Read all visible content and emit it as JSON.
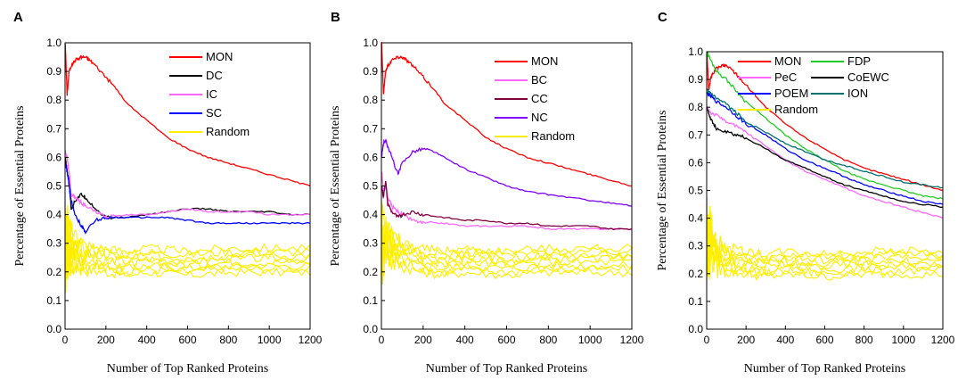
{
  "chart_data": [
    {
      "type": "line",
      "panel": "A",
      "xlabel": "Number of Top Ranked Proteins",
      "ylabel": "Percentage of Essential Proteins",
      "xlim": [
        0,
        1200
      ],
      "ylim": [
        0,
        1.0
      ],
      "xticks": [
        "0",
        "200",
        "400",
        "600",
        "800",
        "1000",
        "1200"
      ],
      "yticks": [
        "0.0",
        "0.1",
        "0.2",
        "0.3",
        "0.4",
        "0.5",
        "0.6",
        "0.7",
        "0.8",
        "0.9",
        "1.0"
      ],
      "legend": {
        "position": "top-right",
        "columns": 1
      },
      "series": [
        {
          "name": "MON",
          "color": "#ff0000",
          "x": [
            1,
            10,
            20,
            30,
            50,
            80,
            100,
            120,
            150,
            200,
            250,
            300,
            400,
            500,
            600,
            700,
            800,
            900,
            1000,
            1100,
            1200
          ],
          "y": [
            1.0,
            0.82,
            0.9,
            0.92,
            0.94,
            0.95,
            0.95,
            0.94,
            0.92,
            0.88,
            0.84,
            0.79,
            0.73,
            0.67,
            0.63,
            0.6,
            0.58,
            0.56,
            0.54,
            0.52,
            0.5
          ]
        },
        {
          "name": "DC",
          "color": "#000000",
          "x": [
            1,
            10,
            20,
            30,
            50,
            80,
            100,
            150,
            200,
            300,
            400,
            500,
            600,
            700,
            800,
            900,
            1000,
            1100,
            1200
          ],
          "y": [
            0.6,
            0.55,
            0.52,
            0.42,
            0.45,
            0.47,
            0.46,
            0.42,
            0.39,
            0.39,
            0.4,
            0.41,
            0.42,
            0.42,
            0.41,
            0.41,
            0.41,
            0.4,
            0.4
          ]
        },
        {
          "name": "IC",
          "color": "#ff66ff",
          "x": [
            1,
            10,
            20,
            30,
            50,
            80,
            100,
            150,
            200,
            300,
            400,
            500,
            600,
            700,
            800,
            900,
            1000,
            1100,
            1200
          ],
          "y": [
            0.62,
            0.6,
            0.55,
            0.47,
            0.46,
            0.44,
            0.43,
            0.41,
            0.39,
            0.4,
            0.4,
            0.41,
            0.42,
            0.41,
            0.41,
            0.41,
            0.4,
            0.4,
            0.4
          ]
        },
        {
          "name": "SC",
          "color": "#0000ff",
          "x": [
            1,
            10,
            20,
            30,
            50,
            80,
            100,
            150,
            200,
            300,
            400,
            500,
            600,
            700,
            800,
            900,
            1000,
            1100,
            1200
          ],
          "y": [
            0.58,
            0.55,
            0.5,
            0.45,
            0.4,
            0.36,
            0.34,
            0.38,
            0.39,
            0.39,
            0.39,
            0.39,
            0.38,
            0.37,
            0.37,
            0.37,
            0.37,
            0.37,
            0.37
          ]
        },
        {
          "name": "Random",
          "color": "#ffee00",
          "x": [
            1,
            20,
            50,
            100,
            200,
            300,
            400,
            600,
            800,
            1000,
            1200
          ],
          "y": [
            0.28,
            0.3,
            0.27,
            0.25,
            0.24,
            0.23,
            0.24,
            0.23,
            0.24,
            0.24,
            0.24
          ]
        }
      ]
    },
    {
      "type": "line",
      "panel": "B",
      "xlabel": "Number of Top Ranked Proteins",
      "ylabel": "Percentage of Essential Proteins",
      "xlim": [
        0,
        1200
      ],
      "ylim": [
        0,
        1.0
      ],
      "xticks": [
        "0",
        "200",
        "400",
        "600",
        "800",
        "1000",
        "1200"
      ],
      "yticks": [
        "0.0",
        "0.1",
        "0.2",
        "0.3",
        "0.4",
        "0.5",
        "0.6",
        "0.7",
        "0.8",
        "0.9",
        "1.0"
      ],
      "legend": {
        "position": "top-right",
        "columns": 1
      },
      "series": [
        {
          "name": "MON",
          "color": "#ff0000",
          "x": [
            1,
            10,
            20,
            30,
            50,
            80,
            100,
            120,
            150,
            200,
            250,
            300,
            400,
            500,
            600,
            700,
            800,
            900,
            1000,
            1100,
            1200
          ],
          "y": [
            1.0,
            0.82,
            0.9,
            0.92,
            0.94,
            0.95,
            0.95,
            0.94,
            0.92,
            0.88,
            0.84,
            0.79,
            0.73,
            0.67,
            0.63,
            0.6,
            0.58,
            0.56,
            0.54,
            0.52,
            0.5
          ]
        },
        {
          "name": "BC",
          "color": "#ff66ff",
          "x": [
            1,
            10,
            20,
            30,
            50,
            80,
            100,
            150,
            200,
            300,
            400,
            500,
            600,
            700,
            800,
            900,
            1000,
            1100,
            1200
          ],
          "y": [
            0.55,
            0.48,
            0.5,
            0.46,
            0.43,
            0.41,
            0.4,
            0.38,
            0.37,
            0.37,
            0.36,
            0.36,
            0.36,
            0.36,
            0.35,
            0.35,
            0.35,
            0.35,
            0.35
          ]
        },
        {
          "name": "CC",
          "color": "#800040",
          "x": [
            1,
            10,
            20,
            30,
            50,
            80,
            100,
            150,
            200,
            300,
            400,
            500,
            600,
            700,
            800,
            900,
            1000,
            1100,
            1200
          ],
          "y": [
            0.5,
            0.46,
            0.52,
            0.44,
            0.41,
            0.39,
            0.4,
            0.41,
            0.4,
            0.39,
            0.38,
            0.38,
            0.37,
            0.37,
            0.36,
            0.36,
            0.36,
            0.35,
            0.35
          ]
        },
        {
          "name": "NC",
          "color": "#8000ff",
          "x": [
            1,
            10,
            20,
            30,
            50,
            80,
            100,
            150,
            200,
            250,
            300,
            400,
            500,
            600,
            700,
            800,
            900,
            1000,
            1100,
            1200
          ],
          "y": [
            0.6,
            0.65,
            0.66,
            0.64,
            0.6,
            0.54,
            0.58,
            0.62,
            0.63,
            0.62,
            0.6,
            0.56,
            0.53,
            0.5,
            0.48,
            0.47,
            0.46,
            0.45,
            0.44,
            0.43
          ]
        },
        {
          "name": "Random",
          "color": "#ffee00",
          "x": [
            1,
            20,
            50,
            100,
            200,
            300,
            400,
            600,
            800,
            1000,
            1200
          ],
          "y": [
            0.3,
            0.32,
            0.28,
            0.26,
            0.24,
            0.23,
            0.24,
            0.23,
            0.24,
            0.24,
            0.24
          ]
        }
      ]
    },
    {
      "type": "line",
      "panel": "C",
      "xlabel": "Number of Top Ranked Proteins",
      "ylabel": "Percentage of Essential Proteins",
      "xlim": [
        0,
        1200
      ],
      "ylim": [
        0,
        1.0
      ],
      "xticks": [
        "0",
        "200",
        "400",
        "600",
        "800",
        "1000",
        "1200"
      ],
      "yticks": [
        "0.0",
        "0.1",
        "0.2",
        "0.3",
        "0.4",
        "0.5",
        "0.6",
        "0.7",
        "0.8",
        "0.9",
        "1.0"
      ],
      "legend": {
        "position": "top-right",
        "columns": 2
      },
      "series": [
        {
          "name": "MON",
          "color": "#ff0000",
          "x": [
            1,
            10,
            20,
            30,
            50,
            80,
            100,
            120,
            150,
            200,
            250,
            300,
            400,
            500,
            600,
            700,
            800,
            900,
            1000,
            1100,
            1200
          ],
          "y": [
            1.0,
            0.86,
            0.9,
            0.92,
            0.94,
            0.95,
            0.95,
            0.94,
            0.92,
            0.88,
            0.84,
            0.8,
            0.74,
            0.69,
            0.65,
            0.61,
            0.58,
            0.56,
            0.54,
            0.52,
            0.5
          ]
        },
        {
          "name": "PeC",
          "color": "#ff66ff",
          "x": [
            1,
            20,
            50,
            100,
            150,
            200,
            300,
            400,
            500,
            600,
            700,
            800,
            900,
            1000,
            1100,
            1200
          ],
          "y": [
            0.8,
            0.78,
            0.77,
            0.75,
            0.73,
            0.71,
            0.66,
            0.61,
            0.57,
            0.54,
            0.51,
            0.48,
            0.46,
            0.44,
            0.42,
            0.4
          ]
        },
        {
          "name": "POEM",
          "color": "#0000ff",
          "x": [
            1,
            20,
            50,
            100,
            150,
            200,
            300,
            400,
            500,
            600,
            700,
            800,
            900,
            1000,
            1100,
            1200
          ],
          "y": [
            0.85,
            0.84,
            0.82,
            0.8,
            0.77,
            0.74,
            0.7,
            0.65,
            0.61,
            0.58,
            0.55,
            0.52,
            0.5,
            0.48,
            0.46,
            0.45
          ]
        },
        {
          "name": "Random",
          "color": "#ffee00",
          "x": [
            1,
            20,
            50,
            100,
            200,
            300,
            400,
            600,
            800,
            1000,
            1200
          ],
          "y": [
            0.3,
            0.32,
            0.27,
            0.25,
            0.24,
            0.23,
            0.24,
            0.23,
            0.24,
            0.24,
            0.24
          ]
        },
        {
          "name": "FDP",
          "color": "#22cc22",
          "x": [
            1,
            20,
            50,
            100,
            150,
            200,
            300,
            400,
            500,
            600,
            700,
            800,
            900,
            1000,
            1100,
            1200
          ],
          "y": [
            1.0,
            0.97,
            0.93,
            0.9,
            0.86,
            0.82,
            0.76,
            0.7,
            0.65,
            0.61,
            0.57,
            0.54,
            0.52,
            0.5,
            0.48,
            0.47
          ]
        },
        {
          "name": "CoEWC",
          "color": "#000000",
          "x": [
            1,
            20,
            50,
            100,
            150,
            200,
            300,
            400,
            500,
            600,
            700,
            800,
            900,
            1000,
            1100,
            1200
          ],
          "y": [
            0.8,
            0.76,
            0.72,
            0.71,
            0.7,
            0.69,
            0.65,
            0.61,
            0.58,
            0.55,
            0.52,
            0.5,
            0.48,
            0.46,
            0.45,
            0.44
          ]
        },
        {
          "name": "ION",
          "color": "#007070",
          "x": [
            1,
            20,
            50,
            100,
            150,
            200,
            300,
            400,
            500,
            600,
            700,
            800,
            900,
            1000,
            1100,
            1200
          ],
          "y": [
            0.86,
            0.85,
            0.83,
            0.81,
            0.78,
            0.75,
            0.71,
            0.67,
            0.64,
            0.61,
            0.59,
            0.57,
            0.55,
            0.53,
            0.52,
            0.51
          ]
        }
      ]
    }
  ]
}
